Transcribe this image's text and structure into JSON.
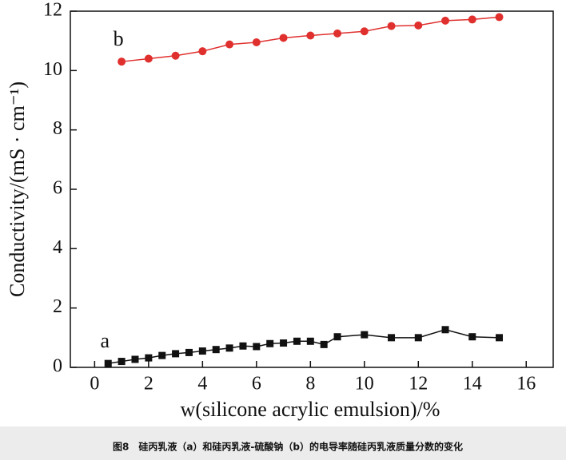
{
  "chart_data": {
    "type": "line",
    "x_label": "w(silicone acrylic emulsion)/%",
    "y_label": "Conductivity/(mS · cm⁻¹)",
    "caption": "图8　硅丙乳液（a）和硅丙乳液-硫酸钠（b）的电导率随硅丙乳液质量分数的变化",
    "xlim": [
      -0.9,
      17
    ],
    "xticks": [
      0,
      2,
      4,
      6,
      8,
      10,
      12,
      14,
      16
    ],
    "ylim": [
      0,
      12
    ],
    "yticks": [
      0,
      2,
      4,
      6,
      8,
      10,
      12
    ],
    "series": [
      {
        "name": "a",
        "color": "#111111",
        "marker": "square",
        "x": [
          0.5,
          1,
          1.5,
          2,
          2.5,
          3,
          3.5,
          4,
          4.5,
          5,
          5.5,
          6,
          6.5,
          7,
          7.5,
          8,
          8.5,
          9,
          10,
          11,
          12,
          13,
          14,
          15
        ],
        "values": [
          0.13,
          0.2,
          0.27,
          0.32,
          0.4,
          0.46,
          0.5,
          0.55,
          0.6,
          0.65,
          0.72,
          0.7,
          0.8,
          0.82,
          0.88,
          0.88,
          0.77,
          1.03,
          1.1,
          1.0,
          1.0,
          1.27,
          1.03,
          1.0
        ]
      },
      {
        "name": "b",
        "color": "#e0302e",
        "marker": "circle",
        "x": [
          1,
          2,
          3,
          4,
          5,
          6,
          7,
          8,
          9,
          10,
          11,
          12,
          13,
          14,
          15
        ],
        "values": [
          10.3,
          10.4,
          10.5,
          10.65,
          10.88,
          10.95,
          11.1,
          11.18,
          11.25,
          11.32,
          11.5,
          11.52,
          11.68,
          11.72,
          11.8
        ]
      }
    ]
  }
}
